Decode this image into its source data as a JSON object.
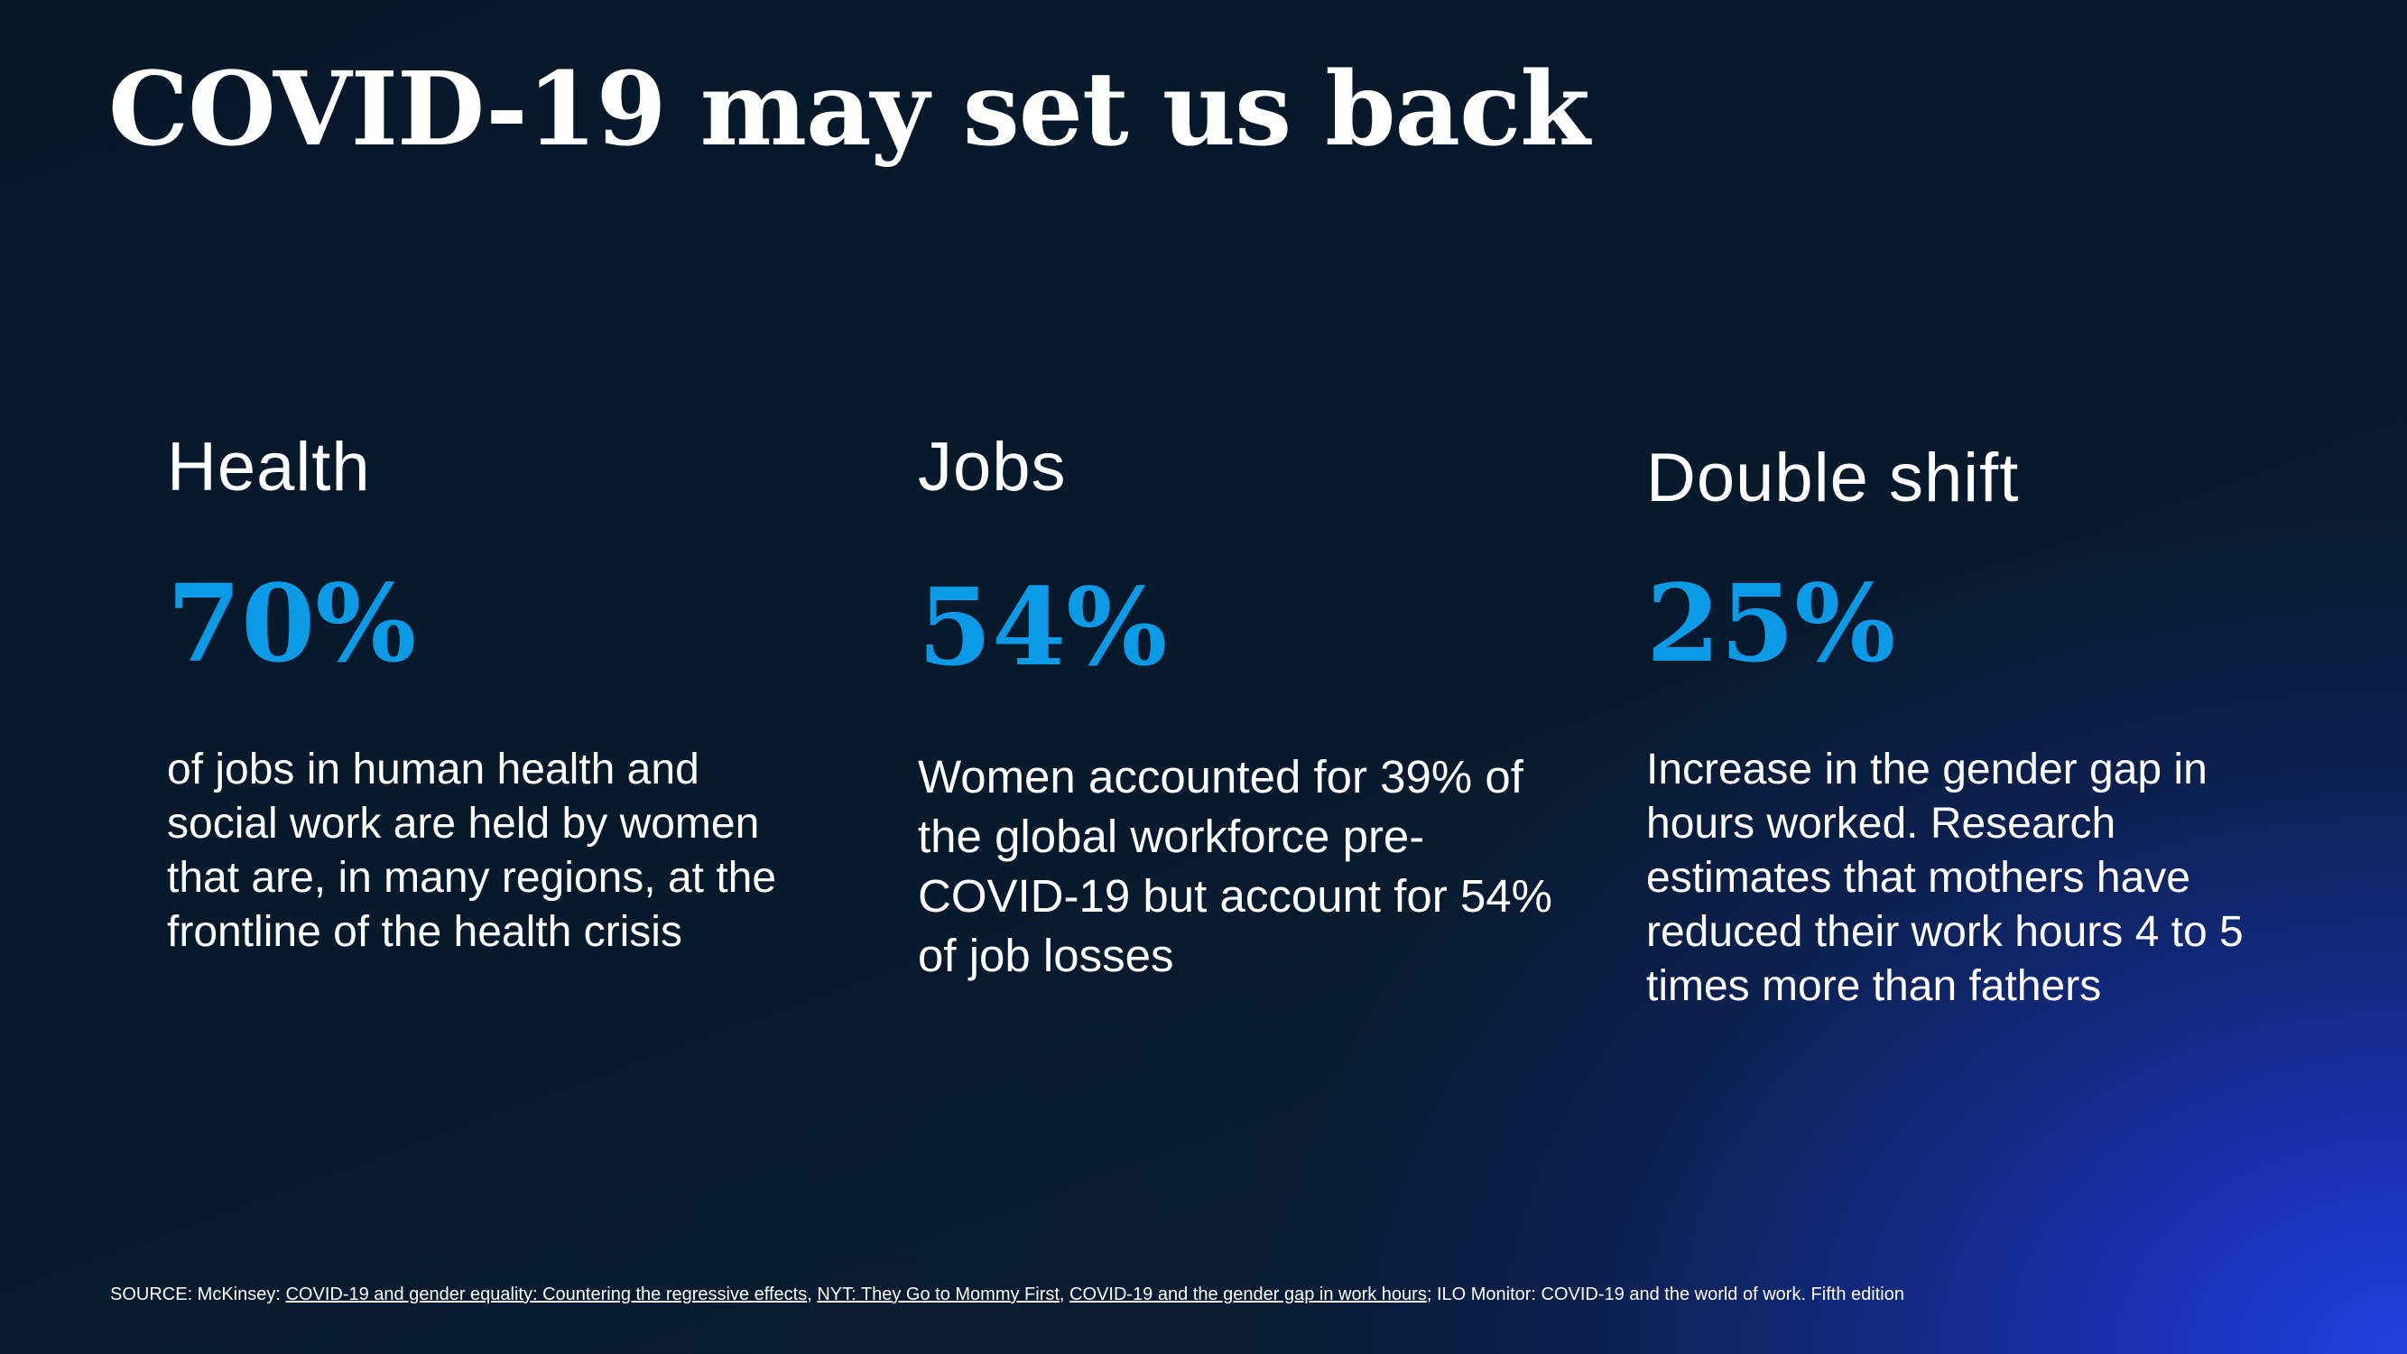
{
  "slide": {
    "title": "COVID-19 may set us back",
    "accent_color": "#0b9be6",
    "background_colors": [
      "#061828",
      "#2340e0"
    ]
  },
  "columns": [
    {
      "heading": "Health",
      "stat": "70%",
      "body": "of jobs in human health and social work are held by women that are, in many regions, at the frontline of the health crisis"
    },
    {
      "heading": "Jobs",
      "stat": "54%",
      "body": "Women accounted for 39% of the global workforce pre-COVID-19 but account for 54% of job losses"
    },
    {
      "heading": "Double shift",
      "stat": "25%",
      "body": "Increase in the gender gap in hours worked. Research estimates that mothers have reduced their work hours 4 to 5 times more than fathers"
    }
  ],
  "source": {
    "prefix": "SOURCE: McKinsey: ",
    "link1": "COVID-19 and gender equality: Countering the regressive effects",
    "sep1": ",  ",
    "link2": "NYT: They Go to Mommy First",
    "sep2": ", ",
    "link3": "COVID-19 and the gender gap in work hours",
    "suffix": "; ILO Monitor: COVID-19 and the world of work. Fifth edition"
  }
}
